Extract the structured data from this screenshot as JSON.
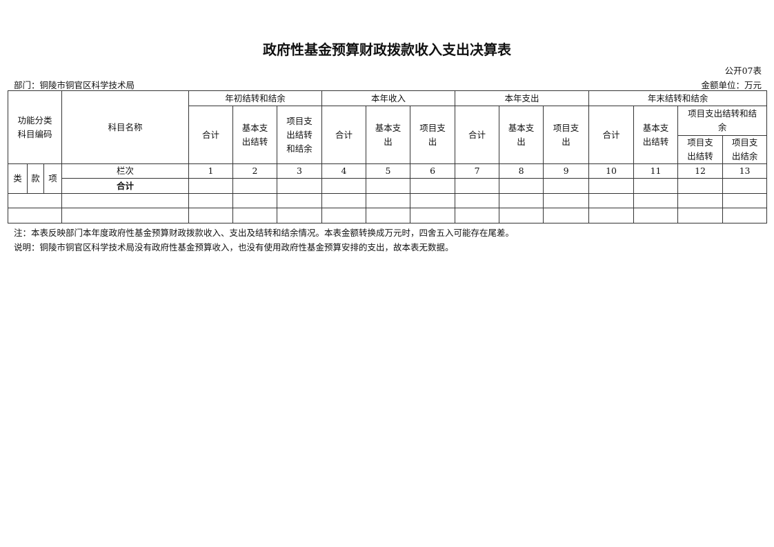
{
  "title": "政府性基金预算财政拨款收入支出决算表",
  "form_no": "公开07表",
  "department": "部门：铜陵市铜官区科学技术局",
  "unit": "金额单位：万元",
  "table": {
    "code_header": [
      "功能分类",
      "科目编码"
    ],
    "name_header": "科目名称",
    "groups": [
      "年初结转和结余",
      "本年收入",
      "本年支出",
      "年末结转和结余"
    ],
    "sub": {
      "g1": [
        [
          "合计"
        ],
        [
          "基本支",
          "出结转"
        ],
        [
          "项目支",
          "出结转",
          "和结余"
        ]
      ],
      "g2": [
        [
          "合计"
        ],
        [
          "基本支",
          "出"
        ],
        [
          "项目支",
          "出"
        ]
      ],
      "g3": [
        [
          "合计"
        ],
        [
          "基本支",
          "出"
        ],
        [
          "项目支",
          "出"
        ]
      ],
      "g4": [
        [
          "合计"
        ],
        [
          "基本支",
          "出结转"
        ]
      ],
      "g4_project": [
        "项目支出结转和结",
        "余"
      ],
      "g4_project_sub": [
        [
          "项目支",
          "出结转"
        ],
        [
          "项目支",
          "出结余"
        ]
      ]
    },
    "code_cols": [
      "类",
      "款",
      "项"
    ],
    "column_no_label": "栏次",
    "column_numbers": [
      "1",
      "2",
      "3",
      "4",
      "5",
      "6",
      "7",
      "8",
      "9",
      "10",
      "11",
      "12",
      "13"
    ],
    "total_label": "合计"
  },
  "notes": [
    "注：本表反映部门本年度政府性基金预算财政拨款收入、支出及结转和结余情况。本表金额转换成万元时，四舍五入可能存在尾差。",
    "说明：铜陵市铜官区科学技术局没有政府性基金预算收入，也没有使用政府性基金预算安排的支出，故本表无数据。"
  ]
}
